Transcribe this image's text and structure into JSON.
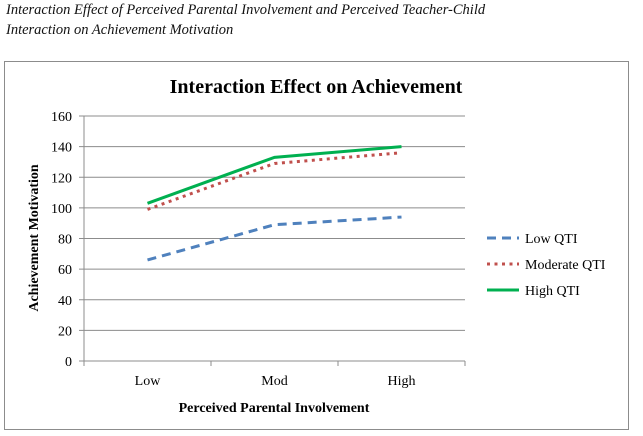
{
  "caption": {
    "line1": "Interaction Effect of Perceived Parental Involvement and Perceived Teacher-Child",
    "line2": "Interaction on Achievement Motivation"
  },
  "chart_data": {
    "type": "line",
    "title": "Interaction Effect on Achievement",
    "xlabel": "Perceived Parental Involvement",
    "ylabel": "Achievement Motivation",
    "categories": [
      "Low",
      "Mod",
      "High"
    ],
    "ylim": [
      0,
      160
    ],
    "yticks": [
      0,
      20,
      40,
      60,
      80,
      100,
      120,
      140,
      160
    ],
    "grid": true,
    "legend_position": "right",
    "series": [
      {
        "name": "Low QTI",
        "values": [
          66,
          89,
          94
        ],
        "color": "#4f81bd",
        "style": "dashed"
      },
      {
        "name": "Moderate QTI",
        "values": [
          99,
          129,
          136
        ],
        "color": "#c0504d",
        "style": "dotted"
      },
      {
        "name": "High QTI",
        "values": [
          103,
          133,
          140
        ],
        "color": "#00b050",
        "style": "solid"
      }
    ]
  }
}
